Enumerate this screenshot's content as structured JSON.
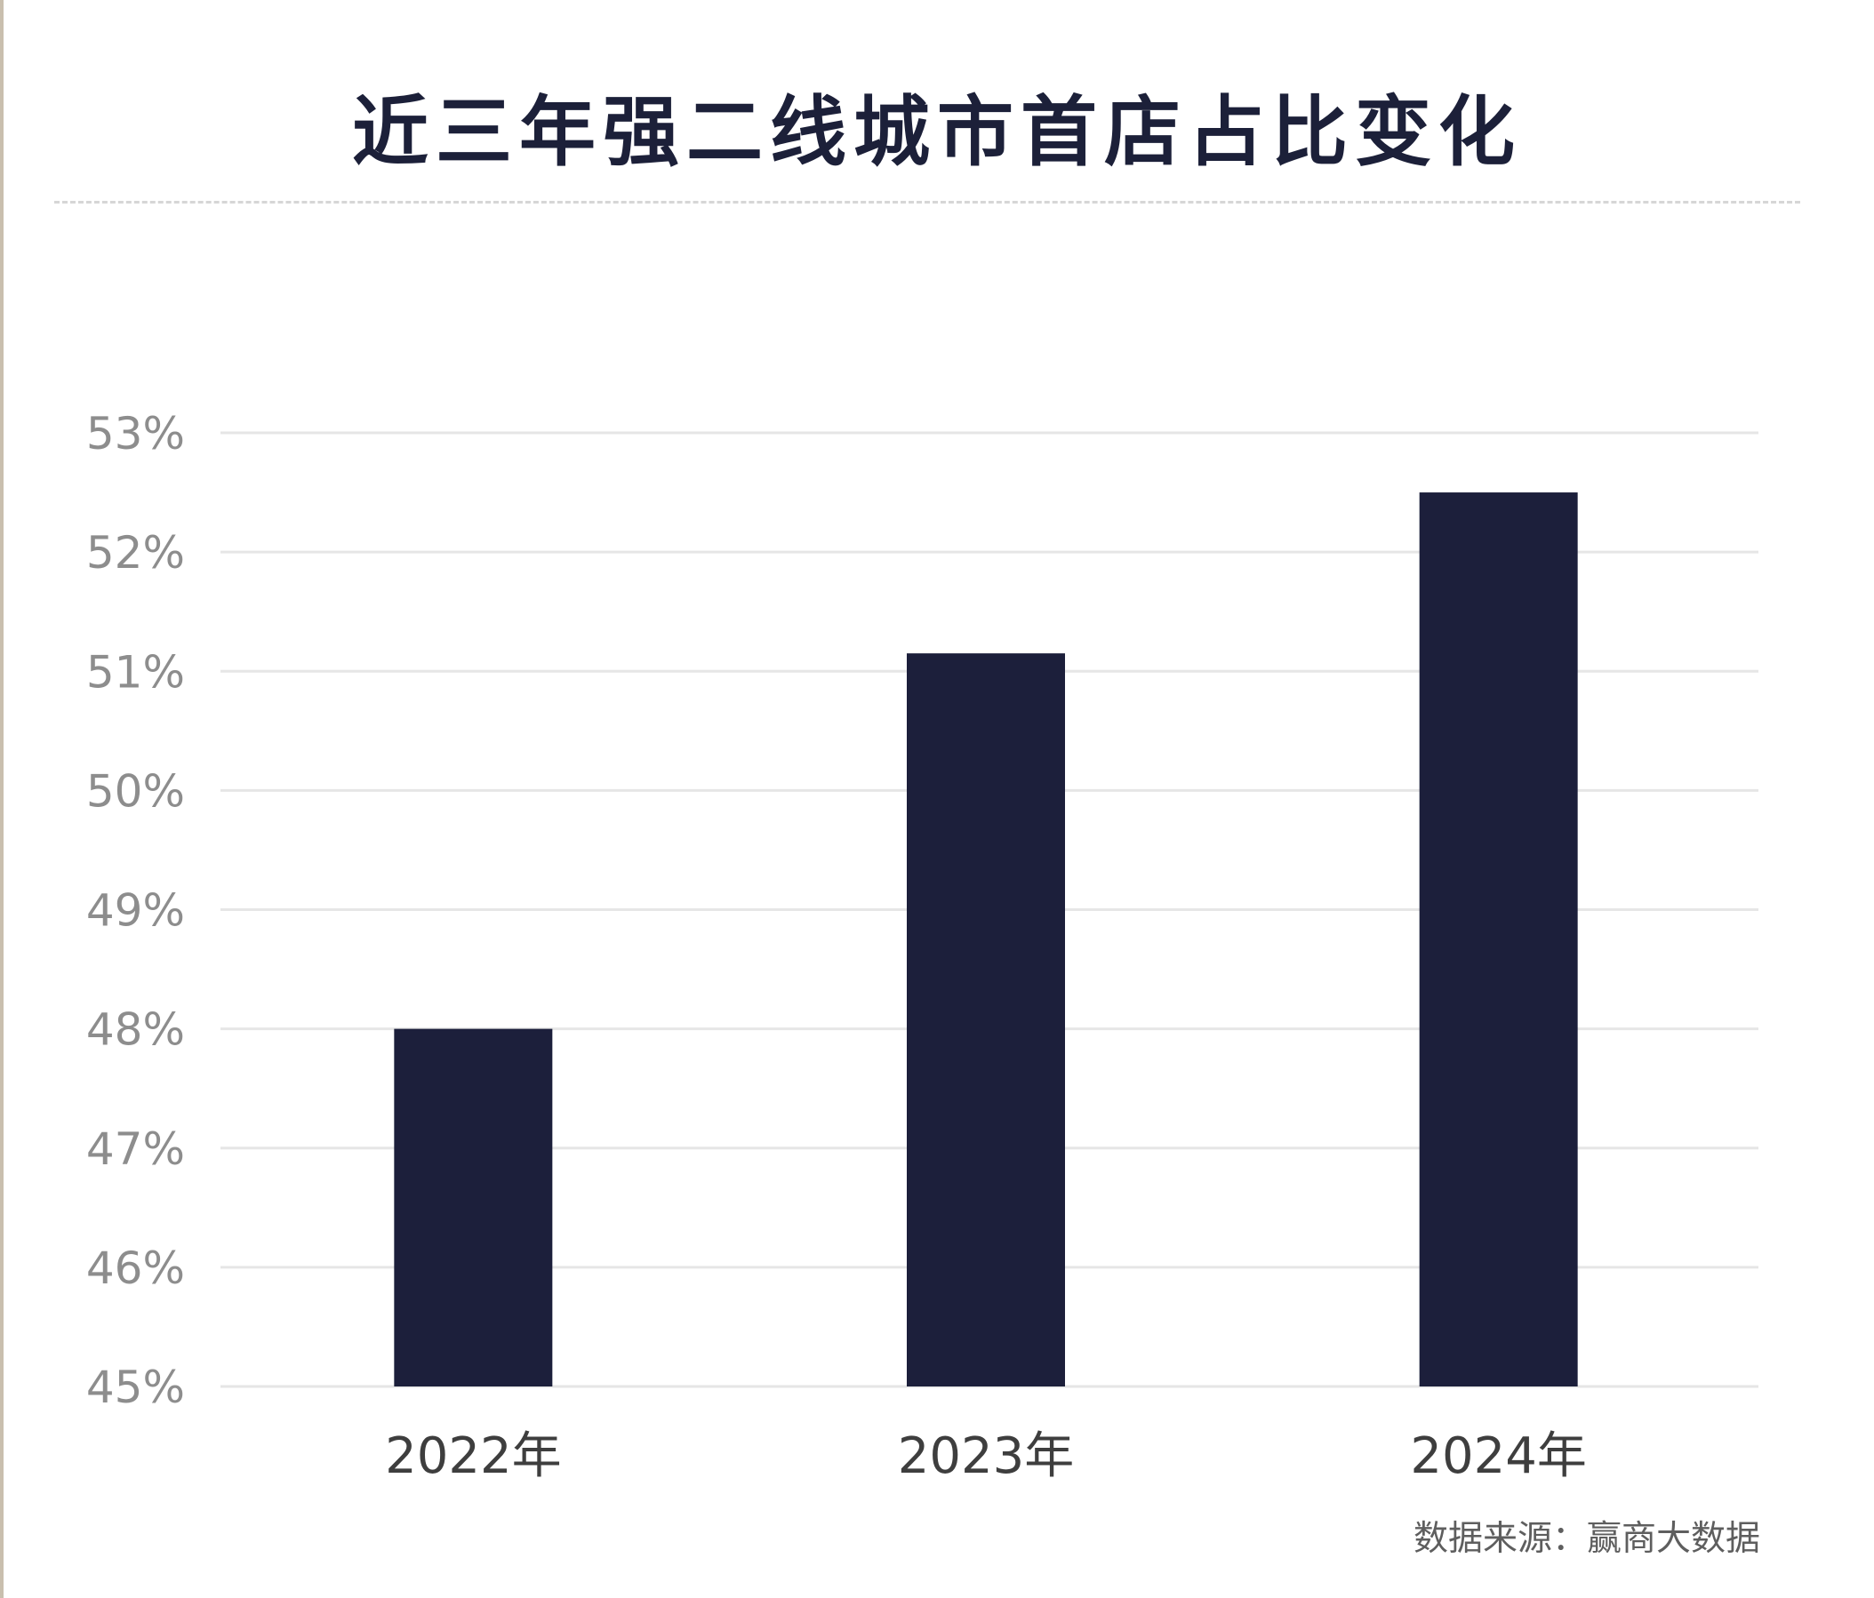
{
  "chart_data": {
    "type": "bar",
    "title": "近三年强二线城市首店占比变化",
    "categories": [
      "2022年",
      "2023年",
      "2024年"
    ],
    "values": [
      48.0,
      51.15,
      52.5
    ],
    "value_unit": "%",
    "ylim": [
      45,
      53
    ],
    "yticks": [
      "45%",
      "46%",
      "47%",
      "48%",
      "49%",
      "50%",
      "51%",
      "52%",
      "53%"
    ],
    "xlabel": "",
    "ylabel": "",
    "grid": true,
    "bar_color": "#1c1f3b",
    "grid_color": "#e6e6e6"
  },
  "source": "数据来源：赢商大数据"
}
